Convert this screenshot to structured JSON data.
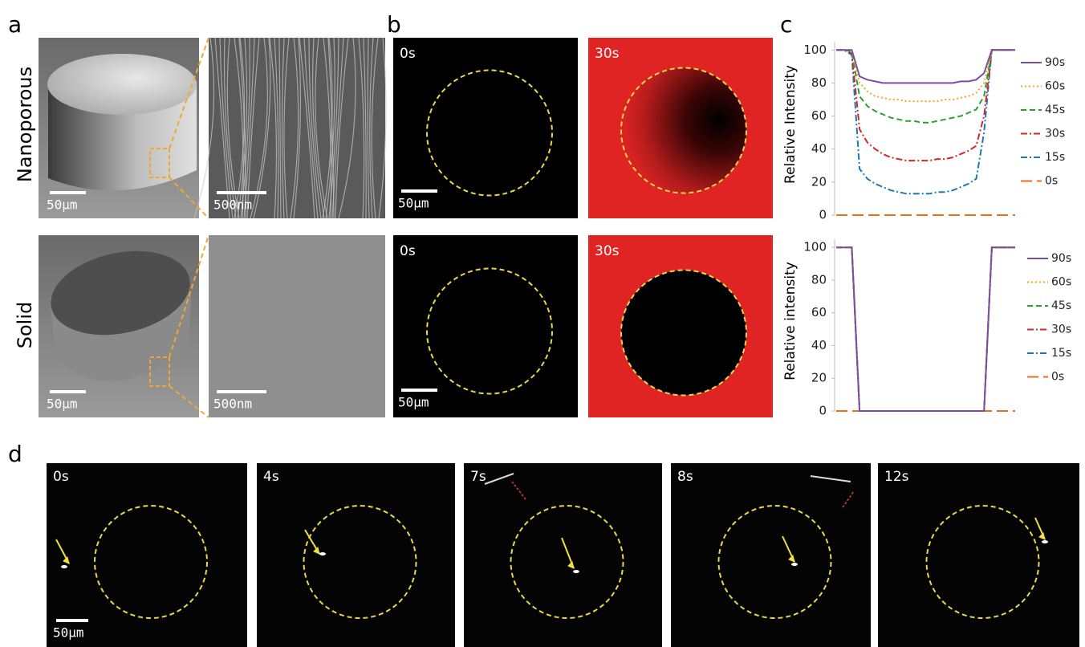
{
  "panel_labels": [
    "a",
    "b",
    "c",
    "d"
  ],
  "panel_a": {
    "row_labels": [
      "Nanoporous",
      "Solid"
    ],
    "scale_bars": [
      "50μm",
      "500nm",
      "50μm",
      "500nm"
    ]
  },
  "panel_b": {
    "time_labels": [
      "0s",
      "30s",
      "0s",
      "30s"
    ],
    "scale_bars": [
      "50μm",
      "50μm"
    ]
  },
  "panel_d": {
    "time_labels": [
      "0s",
      "4s",
      "7s",
      "8s",
      "12s"
    ],
    "scale_bar": "50μm"
  },
  "chart_data": [
    {
      "type": "line",
      "y_label": "Relative Intensity",
      "categories": [
        null,
        null,
        null,
        null,
        null,
        null,
        null,
        null,
        null,
        null,
        null,
        null,
        null,
        null,
        null,
        null,
        null,
        null,
        null,
        null,
        null,
        null,
        null,
        null
      ],
      "ylim": [
        0,
        105
      ],
      "yticks": [
        0,
        20,
        40,
        60,
        80,
        100
      ],
      "legend": "right",
      "series": [
        {
          "name": "90s",
          "color": "#7b4fa0",
          "line_style": "solid",
          "values": [
            100,
            100,
            100,
            84,
            82,
            81,
            80,
            80,
            80,
            80,
            80,
            80,
            80,
            80,
            80,
            80,
            81,
            81,
            82,
            86,
            100,
            100,
            100,
            100
          ]
        },
        {
          "name": "60s",
          "color": "#f5a623",
          "line_style": "dotted",
          "values": [
            100,
            100,
            100,
            80,
            75,
            72,
            71,
            70,
            70,
            69,
            69,
            69,
            69,
            69,
            70,
            70,
            71,
            72,
            74,
            80,
            100,
            100,
            100,
            100
          ]
        },
        {
          "name": "45s",
          "color": "#2ca02c",
          "line_style": "dashed",
          "values": [
            100,
            100,
            99,
            72,
            66,
            63,
            61,
            59,
            58,
            57,
            57,
            56,
            56,
            57,
            58,
            59,
            60,
            62,
            64,
            72,
            100,
            100,
            100,
            100
          ]
        },
        {
          "name": "30s",
          "color": "#d62728",
          "line_style": "dashdot",
          "values": [
            100,
            100,
            98,
            52,
            44,
            40,
            37,
            35,
            34,
            33,
            33,
            33,
            33,
            34,
            34,
            35,
            37,
            39,
            42,
            60,
            100,
            100,
            100,
            100
          ]
        },
        {
          "name": "15s",
          "color": "#1f77b4",
          "line_style": "dashdot",
          "values": [
            100,
            100,
            97,
            28,
            22,
            19,
            17,
            15,
            14,
            13,
            13,
            13,
            13,
            14,
            14,
            15,
            17,
            19,
            22,
            50,
            100,
            100,
            100,
            100
          ]
        },
        {
          "name": "0s",
          "color": "#e8701a",
          "line_style": "longdash",
          "values": [
            0,
            0,
            0,
            0,
            0,
            0,
            0,
            0,
            0,
            0,
            0,
            0,
            0,
            0,
            0,
            0,
            0,
            0,
            0,
            0,
            0,
            0,
            0,
            0
          ]
        }
      ]
    },
    {
      "type": "line",
      "y_label": "Relative intensity",
      "categories": [
        null,
        null,
        null,
        null,
        null,
        null,
        null,
        null,
        null,
        null,
        null,
        null,
        null,
        null,
        null,
        null,
        null,
        null,
        null,
        null,
        null,
        null,
        null,
        null
      ],
      "ylim": [
        0,
        105
      ],
      "yticks": [
        0,
        20,
        40,
        60,
        80,
        100
      ],
      "legend": "right",
      "series": [
        {
          "name": "90s",
          "color": "#7b4fa0",
          "line_style": "solid",
          "values": [
            100,
            100,
            100,
            0,
            0,
            0,
            0,
            0,
            0,
            0,
            0,
            0,
            0,
            0,
            0,
            0,
            0,
            0,
            0,
            0,
            100,
            100,
            100,
            100
          ]
        },
        {
          "name": "60s",
          "color": "#f5a623",
          "line_style": "dotted",
          "values": [
            100,
            100,
            100,
            0,
            0,
            0,
            0,
            0,
            0,
            0,
            0,
            0,
            0,
            0,
            0,
            0,
            0,
            0,
            0,
            0,
            100,
            100,
            100,
            100
          ]
        },
        {
          "name": "45s",
          "color": "#2ca02c",
          "line_style": "dashed",
          "values": [
            100,
            100,
            100,
            0,
            0,
            0,
            0,
            0,
            0,
            0,
            0,
            0,
            0,
            0,
            0,
            0,
            0,
            0,
            0,
            0,
            100,
            100,
            100,
            100
          ]
        },
        {
          "name": "30s",
          "color": "#d62728",
          "line_style": "dashdot",
          "values": [
            100,
            100,
            100,
            0,
            0,
            0,
            0,
            0,
            0,
            0,
            0,
            0,
            0,
            0,
            0,
            0,
            0,
            0,
            0,
            0,
            100,
            100,
            100,
            100
          ]
        },
        {
          "name": "15s",
          "color": "#1f77b4",
          "line_style": "dashdot",
          "values": [
            100,
            100,
            100,
            0,
            0,
            0,
            0,
            0,
            0,
            0,
            0,
            0,
            0,
            0,
            0,
            0,
            0,
            0,
            0,
            0,
            100,
            100,
            100,
            100
          ]
        },
        {
          "name": "0s",
          "color": "#e8701a",
          "line_style": "longdash",
          "values": [
            0,
            0,
            0,
            0,
            0,
            0,
            0,
            0,
            0,
            0,
            0,
            0,
            0,
            0,
            0,
            0,
            0,
            0,
            0,
            0,
            0,
            0,
            0,
            0
          ]
        }
      ]
    }
  ]
}
